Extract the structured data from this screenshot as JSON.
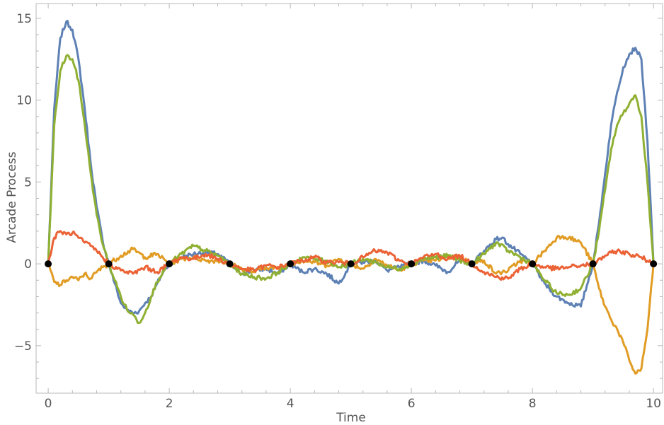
{
  "chart_data": {
    "type": "line",
    "title": "",
    "xlabel": "Time",
    "ylabel": "Arcade Process",
    "xlim": [
      -0.2,
      10.15
    ],
    "ylim": [
      -7.9,
      15.9
    ],
    "x_ticks": [
      0,
      2,
      4,
      6,
      8,
      10
    ],
    "x_tick_labels": [
      "0",
      "2",
      "4",
      "6",
      "8",
      "10"
    ],
    "y_ticks": [
      -5,
      0,
      5,
      10,
      15
    ],
    "y_tick_labels": [
      "−5",
      "0",
      "5",
      "10",
      "15"
    ],
    "grid": false,
    "legend": "none",
    "knots": {
      "x": [
        0,
        1,
        2,
        3,
        4,
        5,
        6,
        7,
        8,
        9,
        10
      ],
      "y": [
        0,
        0,
        0,
        0,
        0,
        0,
        0,
        0,
        0,
        0,
        0
      ],
      "color": "#000000"
    },
    "series": [
      {
        "color": "#5e81b5",
        "x": [
          0,
          0.1,
          0.2,
          0.3,
          0.4,
          0.5,
          0.6,
          0.7,
          0.8,
          0.9,
          1.0,
          1.1,
          1.2,
          1.3,
          1.4,
          1.5,
          1.6,
          1.7,
          1.8,
          1.9,
          2.0,
          2.2,
          2.4,
          2.6,
          2.8,
          3.0,
          3.2,
          3.4,
          3.6,
          3.8,
          4.0,
          4.2,
          4.4,
          4.6,
          4.8,
          5.0,
          5.2,
          5.4,
          5.6,
          5.8,
          6.0,
          6.2,
          6.4,
          6.6,
          6.8,
          7.0,
          7.2,
          7.4,
          7.5,
          7.6,
          7.8,
          8.0,
          8.2,
          8.4,
          8.6,
          8.8,
          9.0,
          9.1,
          9.2,
          9.3,
          9.4,
          9.5,
          9.6,
          9.7,
          9.8,
          9.9,
          10.0
        ],
        "y": [
          0,
          9.5,
          13.8,
          14.8,
          14.3,
          12.5,
          9.6,
          6.2,
          3.5,
          1.4,
          0,
          -1.2,
          -2.4,
          -2.8,
          -3.0,
          -2.9,
          -2.4,
          -2.0,
          -1.2,
          -0.5,
          0,
          0.4,
          0.6,
          0.7,
          0.6,
          0,
          -0.6,
          -0.4,
          -0.3,
          -0.6,
          0,
          -0.5,
          -0.3,
          -0.6,
          -1.2,
          0,
          0.1,
          0.2,
          -0.4,
          -0.2,
          0,
          0.2,
          -0.1,
          -0.5,
          0.2,
          0,
          0.8,
          1.5,
          1.6,
          1.2,
          0.6,
          0,
          -1.2,
          -2.0,
          -2.4,
          -2.6,
          0,
          2.5,
          5.5,
          8.5,
          10.5,
          12.0,
          12.8,
          13.2,
          12.5,
          7.5,
          0
        ]
      },
      {
        "color": "#e19c24",
        "x": [
          0,
          0.1,
          0.2,
          0.3,
          0.4,
          0.5,
          0.6,
          0.7,
          0.8,
          0.9,
          1.0,
          1.2,
          1.4,
          1.6,
          1.8,
          2.0,
          2.2,
          2.4,
          2.6,
          2.8,
          3.0,
          3.2,
          3.4,
          3.6,
          3.8,
          4.0,
          4.2,
          4.4,
          4.6,
          4.8,
          5.0,
          5.2,
          5.4,
          5.6,
          5.8,
          6.0,
          6.2,
          6.4,
          6.6,
          6.8,
          7.0,
          7.2,
          7.4,
          7.6,
          7.8,
          8.0,
          8.2,
          8.4,
          8.5,
          8.6,
          8.8,
          9.0,
          9.1,
          9.2,
          9.3,
          9.4,
          9.5,
          9.6,
          9.7,
          9.8,
          9.9,
          10.0
        ],
        "y": [
          0,
          -1.1,
          -1.3,
          -1.0,
          -0.8,
          -1.0,
          -0.6,
          -0.9,
          -0.5,
          -0.2,
          0,
          0.5,
          0.9,
          0.4,
          0.6,
          0,
          0.3,
          0.4,
          0.2,
          0.2,
          0,
          -0.3,
          -0.5,
          -0.2,
          -0.3,
          0,
          0.2,
          0.1,
          -0.1,
          0.3,
          0,
          -0.3,
          0.3,
          -0.1,
          -0.4,
          0,
          0.2,
          0.2,
          0.4,
          0.4,
          0,
          0.2,
          -0.6,
          -0.4,
          0.2,
          0,
          0.8,
          1.6,
          1.7,
          1.6,
          1.3,
          0,
          -1.5,
          -2.6,
          -3.4,
          -4.0,
          -4.8,
          -5.9,
          -6.7,
          -6.4,
          -4.0,
          0
        ]
      },
      {
        "color": "#8fb032",
        "x": [
          0,
          0.1,
          0.2,
          0.3,
          0.4,
          0.5,
          0.6,
          0.7,
          0.8,
          0.9,
          1.0,
          1.1,
          1.2,
          1.3,
          1.4,
          1.5,
          1.6,
          1.7,
          1.8,
          1.9,
          2.0,
          2.2,
          2.4,
          2.6,
          2.8,
          3.0,
          3.2,
          3.4,
          3.6,
          3.8,
          4.0,
          4.2,
          4.4,
          4.6,
          4.8,
          5.0,
          5.2,
          5.4,
          5.6,
          5.8,
          6.0,
          6.2,
          6.4,
          6.6,
          6.8,
          7.0,
          7.2,
          7.4,
          7.6,
          7.8,
          8.0,
          8.2,
          8.4,
          8.6,
          8.8,
          9.0,
          9.1,
          9.2,
          9.3,
          9.4,
          9.5,
          9.6,
          9.7,
          9.8,
          9.9,
          10.0
        ],
        "y": [
          0,
          8.5,
          11.8,
          12.7,
          12.5,
          11.2,
          8.6,
          5.6,
          3.0,
          1.2,
          0,
          -1.0,
          -2.0,
          -2.8,
          -3.1,
          -3.6,
          -3.0,
          -2.0,
          -1.1,
          -0.4,
          0,
          0.6,
          1.1,
          0.8,
          0.5,
          0,
          -0.6,
          -0.8,
          -0.9,
          -0.5,
          0,
          0.4,
          0.3,
          0.2,
          -0.2,
          0,
          0.3,
          0.1,
          -0.2,
          -0.3,
          0,
          0.3,
          0.4,
          0.5,
          0.2,
          0,
          0.6,
          1.3,
          0.8,
          0.4,
          0,
          -1.0,
          -1.8,
          -1.9,
          -1.5,
          0,
          2.0,
          4.5,
          7.0,
          8.5,
          9.2,
          9.8,
          10.3,
          9.0,
          5.0,
          0
        ]
      },
      {
        "color": "#eb6235",
        "x": [
          0,
          0.1,
          0.2,
          0.3,
          0.4,
          0.5,
          0.6,
          0.7,
          0.8,
          0.9,
          1.0,
          1.2,
          1.4,
          1.6,
          1.8,
          2.0,
          2.2,
          2.4,
          2.6,
          2.8,
          3.0,
          3.2,
          3.4,
          3.6,
          3.8,
          4.0,
          4.2,
          4.4,
          4.6,
          4.8,
          5.0,
          5.2,
          5.4,
          5.6,
          5.8,
          6.0,
          6.2,
          6.4,
          6.6,
          6.8,
          7.0,
          7.2,
          7.4,
          7.6,
          7.8,
          8.0,
          8.2,
          8.4,
          8.6,
          8.8,
          9.0,
          9.2,
          9.4,
          9.6,
          9.8,
          10.0
        ],
        "y": [
          0,
          1.6,
          2.0,
          1.8,
          1.9,
          1.6,
          1.3,
          1.1,
          0.8,
          0.4,
          0,
          -0.4,
          -0.6,
          -0.2,
          -0.5,
          0,
          0.4,
          0.3,
          0.6,
          0.3,
          0,
          -0.3,
          -0.4,
          -0.1,
          -0.2,
          0,
          0.2,
          0.4,
          0.1,
          0.1,
          0,
          0.4,
          0.8,
          0.7,
          0.2,
          0,
          0.4,
          0.6,
          0.3,
          0.5,
          0,
          -0.5,
          -0.8,
          -0.9,
          -0.3,
          0,
          -0.2,
          -0.3,
          -0.2,
          -0.1,
          0,
          0.5,
          0.8,
          0.6,
          0.4,
          0
        ]
      }
    ]
  }
}
